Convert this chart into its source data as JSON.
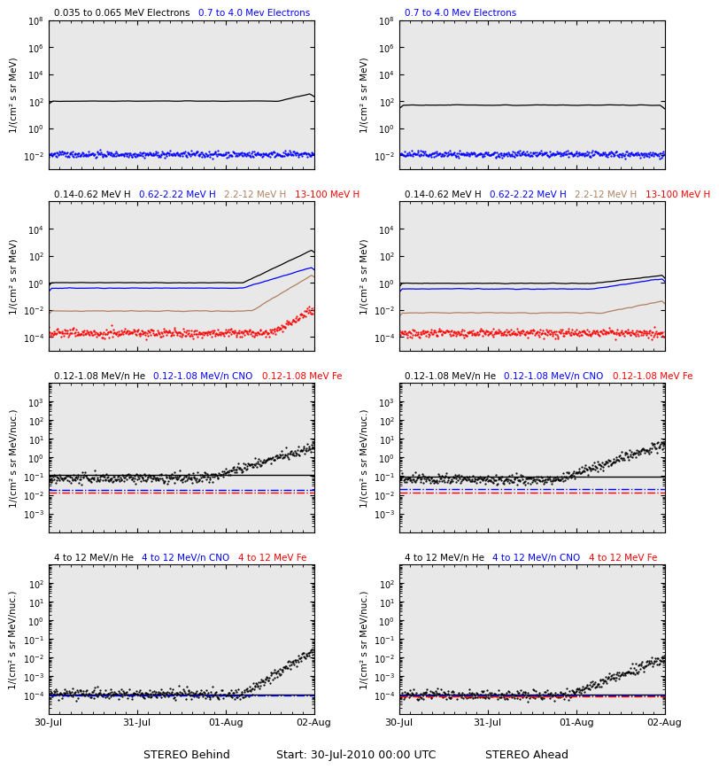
{
  "title_center": "Start: 30-Jul-2010 00:00 UTC",
  "title_left": "STEREO Behind",
  "title_right": "STEREO Ahead",
  "xtick_labels": [
    "30-Jul",
    "31-Jul",
    "01-Aug",
    "02-Aug"
  ],
  "row0": {
    "left_title_parts": [
      [
        "0.035 to 0.065 MeV Electrons",
        "black"
      ],
      [
        "0.7 to 4.0 Mev Electrons",
        "blue"
      ]
    ],
    "right_title_parts": [
      [
        "0.7 to 4.0 Mev Electrons",
        "blue"
      ]
    ],
    "ylim": [
      0.001,
      100000000.0
    ],
    "yticks": [
      -2,
      0,
      2,
      4,
      6,
      8
    ],
    "ylabel": "1/(cm² s sr MeV)"
  },
  "row1": {
    "left_title_parts": [
      [
        "0.14-0.62 MeV H",
        "black"
      ],
      [
        "0.62-2.22 MeV H",
        "blue"
      ],
      [
        "2.2-12 MeV H",
        "#b08060"
      ],
      [
        "13-100 MeV H",
        "red"
      ]
    ],
    "right_title_parts": [
      [
        "0.14-0.62 MeV H",
        "black"
      ],
      [
        "0.62-2.22 MeV H",
        "blue"
      ],
      [
        "2.2-12 MeV H",
        "#b08060"
      ],
      [
        "13-100 MeV H",
        "red"
      ]
    ],
    "ylim": [
      1e-05,
      1000000.0
    ],
    "yticks": [
      -4,
      -2,
      0,
      2,
      4
    ],
    "ylabel": "1/(cm² s sr MeV)"
  },
  "row2": {
    "left_title_parts": [
      [
        "0.12-1.08 MeV/n He",
        "black"
      ],
      [
        "0.12-1.08 MeV/n CNO",
        "blue"
      ],
      [
        "0.12-1.08 MeV Fe",
        "red"
      ]
    ],
    "right_title_parts": [
      [
        "0.12-1.08 MeV/n He",
        "black"
      ],
      [
        "0.12-1.08 MeV/n CNO",
        "blue"
      ],
      [
        "0.12-1.08 MeV Fe",
        "red"
      ]
    ],
    "ylim": [
      0.0001,
      10000.0
    ],
    "yticks": [
      -3,
      -2,
      -1,
      0,
      1,
      2,
      3
    ],
    "ylabel": "1/(cm² s sr MeV/nuc.)"
  },
  "row3": {
    "left_title_parts": [
      [
        "4 to 12 MeV/n He",
        "black"
      ],
      [
        "4 to 12 MeV/n CNO",
        "blue"
      ],
      [
        "4 to 12 MeV Fe",
        "red"
      ]
    ],
    "right_title_parts": [
      [
        "4 to 12 MeV/n He",
        "black"
      ],
      [
        "4 to 12 MeV/n CNO",
        "blue"
      ],
      [
        "4 to 12 MeV Fe",
        "red"
      ]
    ],
    "ylim": [
      1e-05,
      1000.0
    ],
    "yticks": [
      -4,
      -3,
      -2,
      -1,
      0,
      1,
      2
    ],
    "ylabel": "1/(cm² s sr MeV/nuc.)"
  },
  "tan_color": "#b08060",
  "panel_bg": "#e8e8e8"
}
